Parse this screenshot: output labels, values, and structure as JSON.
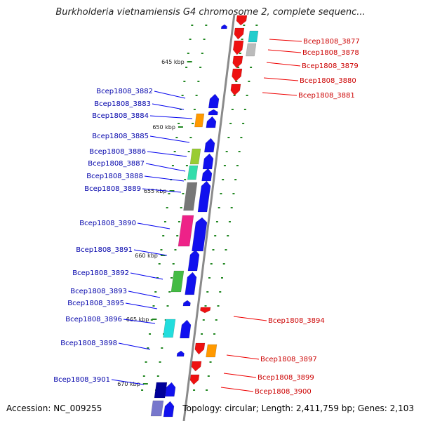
{
  "title": "Burkholderia vietnamiensis G4 chromosome 2, complete sequenc...",
  "footer": {
    "accession": "Accession: NC_009255",
    "summary": "Topology: circular; Length: 2,411,759 bp; Genes: 2,103"
  },
  "colors": {
    "forward_gene": "#0000ee",
    "reverse_gene": "#ee0000",
    "forward_label": "#0000aa",
    "reverse_label": "#cc0000",
    "backbone": "#8a8a8a",
    "tick": "#228822"
  },
  "kbp_ticks": [
    "645 kbp",
    "650 kbp",
    "655 kbp",
    "660 kbp",
    "665 kbp",
    "670 kbp"
  ],
  "forward_genes": [
    "Bcep1808_3882",
    "Bcep1808_3883",
    "Bcep1808_3884",
    "Bcep1808_3885",
    "Bcep1808_3886",
    "Bcep1808_3887",
    "Bcep1808_3888",
    "Bcep1808_3889",
    "Bcep1808_3890",
    "Bcep1808_3891",
    "Bcep1808_3892",
    "Bcep1808_3893",
    "Bcep1808_3895",
    "Bcep1808_3896",
    "Bcep1808_3898",
    "Bcep1808_3901"
  ],
  "reverse_genes": [
    "Bcep1808_3877",
    "Bcep1808_3878",
    "Bcep1808_3879",
    "Bcep1808_3880",
    "Bcep1808_3881",
    "Bcep1808_3894",
    "Bcep1808_3897",
    "Bcep1808_3899",
    "Bcep1808_3900"
  ]
}
